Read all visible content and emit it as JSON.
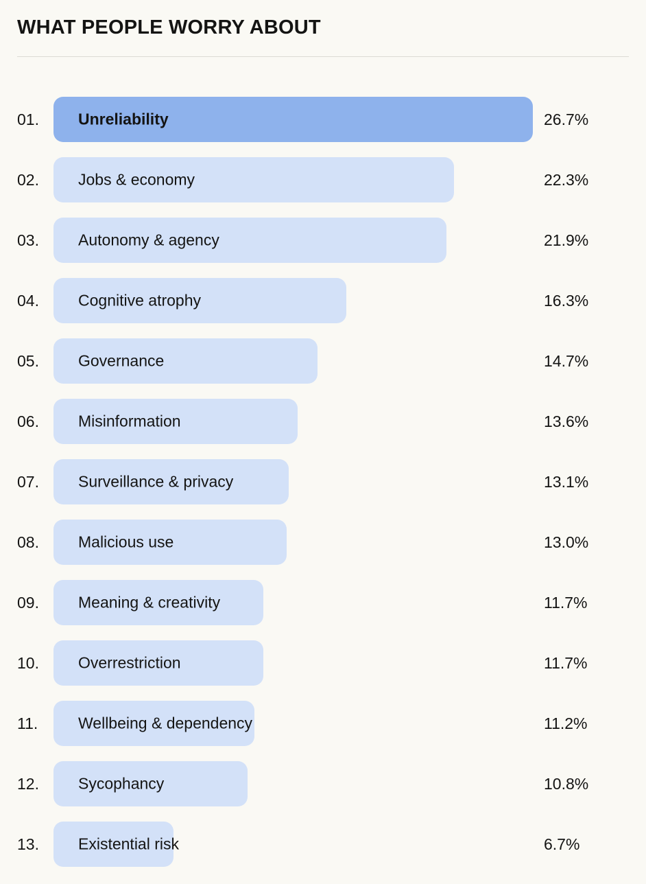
{
  "header": {
    "title": "WHAT PEOPLE WORRY ABOUT"
  },
  "chart_data": {
    "type": "bar",
    "orientation": "horizontal",
    "title": "WHAT PEOPLE WORRY ABOUT",
    "ranks": [
      "01.",
      "02.",
      "03.",
      "04.",
      "05.",
      "06.",
      "07.",
      "08.",
      "09.",
      "10.",
      "11.",
      "12.",
      "13."
    ],
    "categories": [
      "Unreliability",
      "Jobs & economy",
      "Autonomy & agency",
      "Cognitive atrophy",
      "Governance",
      "Misinformation",
      "Surveillance & privacy",
      "Malicious use",
      "Meaning & creativity",
      "Overrestriction",
      "Wellbeing & dependency",
      "Sycophancy",
      "Existential risk"
    ],
    "values": [
      26.7,
      22.3,
      21.9,
      16.3,
      14.7,
      13.6,
      13.1,
      13.0,
      11.7,
      11.7,
      11.2,
      10.8,
      6.7
    ],
    "value_labels": [
      "26.7%",
      "22.3%",
      "21.9%",
      "16.3%",
      "14.7%",
      "13.6%",
      "13.1%",
      "13.0%",
      "11.7%",
      "11.7%",
      "11.2%",
      "10.8%",
      "6.7%"
    ],
    "xlim": [
      0,
      26.7
    ],
    "highlight_index": 0,
    "legend": "none",
    "grid": "off",
    "colors": {
      "bar": "#d3e1f8",
      "bar_highlight": "#8eb2ec",
      "background": "#faf9f4",
      "text": "#141413",
      "rule": "#dcdad4"
    }
  }
}
